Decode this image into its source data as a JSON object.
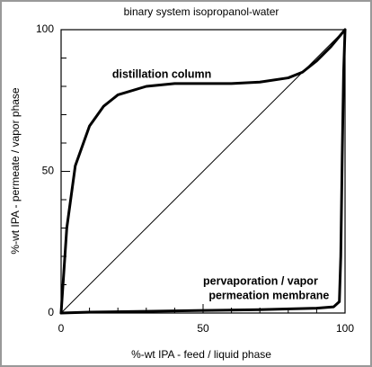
{
  "chart_data": {
    "type": "line",
    "title": "binary system isopropanol-water",
    "xlabel": "%-wt IPA - feed / liquid phase",
    "ylabel": "%-wt IPA - permeate / vapor phase",
    "xlim": [
      0,
      100
    ],
    "ylim": [
      0,
      100
    ],
    "xticks": [
      0,
      50,
      100
    ],
    "yticks": [
      0,
      50,
      100
    ],
    "xminor_ticks": [
      10,
      20,
      30,
      40,
      60,
      70,
      80,
      90
    ],
    "yminor_ticks": [
      10,
      20,
      30,
      40,
      60,
      70,
      80,
      90
    ],
    "series": [
      {
        "color": "#000000",
        "width": 3,
        "x": [
          0,
          2,
          5,
          10,
          15,
          20,
          30,
          40,
          50,
          60,
          70,
          80,
          85,
          90,
          95,
          100
        ],
        "values": [
          0,
          30,
          52,
          66,
          73,
          77,
          80,
          81,
          81,
          81,
          81.5,
          83,
          85,
          89,
          94,
          100
        ]
      },
      {
        "color": "#000000",
        "width": 1,
        "x": [
          0,
          100
        ],
        "values": [
          0,
          100
        ]
      },
      {
        "color": "#000000",
        "width": 3,
        "x": [
          0,
          10,
          30,
          50,
          70,
          90,
          96,
          98,
          98.5,
          99,
          99.5,
          100
        ],
        "values": [
          0,
          0.3,
          0.6,
          0.9,
          1.2,
          1.7,
          2.2,
          4,
          20,
          55,
          85,
          100
        ]
      }
    ],
    "annotations": [
      {
        "text": "distillation column",
        "x": 18,
        "y": 84
      },
      {
        "text": "pervaporation / vapor",
        "x": 50,
        "y": 11
      },
      {
        "text": "permeation membrane",
        "x": 52,
        "y": 6
      }
    ]
  }
}
